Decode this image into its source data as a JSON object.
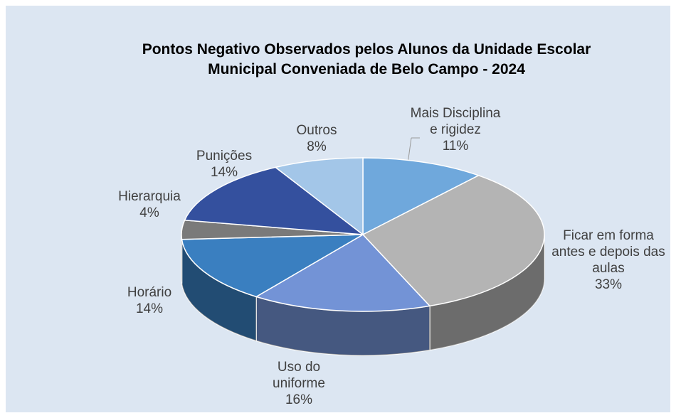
{
  "chart_data": {
    "type": "pie3d",
    "title": "Pontos Negativo Observados pelos Alunos da Unidade Escolar Municipal Conveniada de Belo Campo - 2024",
    "categories": [
      "Mais Disciplina e rigidez",
      "Ficar em forma antes e depois das aulas",
      "Uso do uniforme",
      "Horário",
      "Hierarquia",
      "Punições",
      "Outros"
    ],
    "values": [
      11,
      33,
      16,
      14,
      4,
      14,
      8
    ],
    "value_labels": [
      "11%",
      "33%",
      "16%",
      "14%",
      "4%",
      "14%",
      "8%"
    ],
    "colors": [
      "#6fa8dc",
      "#b4b4b4",
      "#7393d6",
      "#3a7fc0",
      "#7a7a7a",
      "#34509e",
      "#a3c6e8"
    ]
  }
}
